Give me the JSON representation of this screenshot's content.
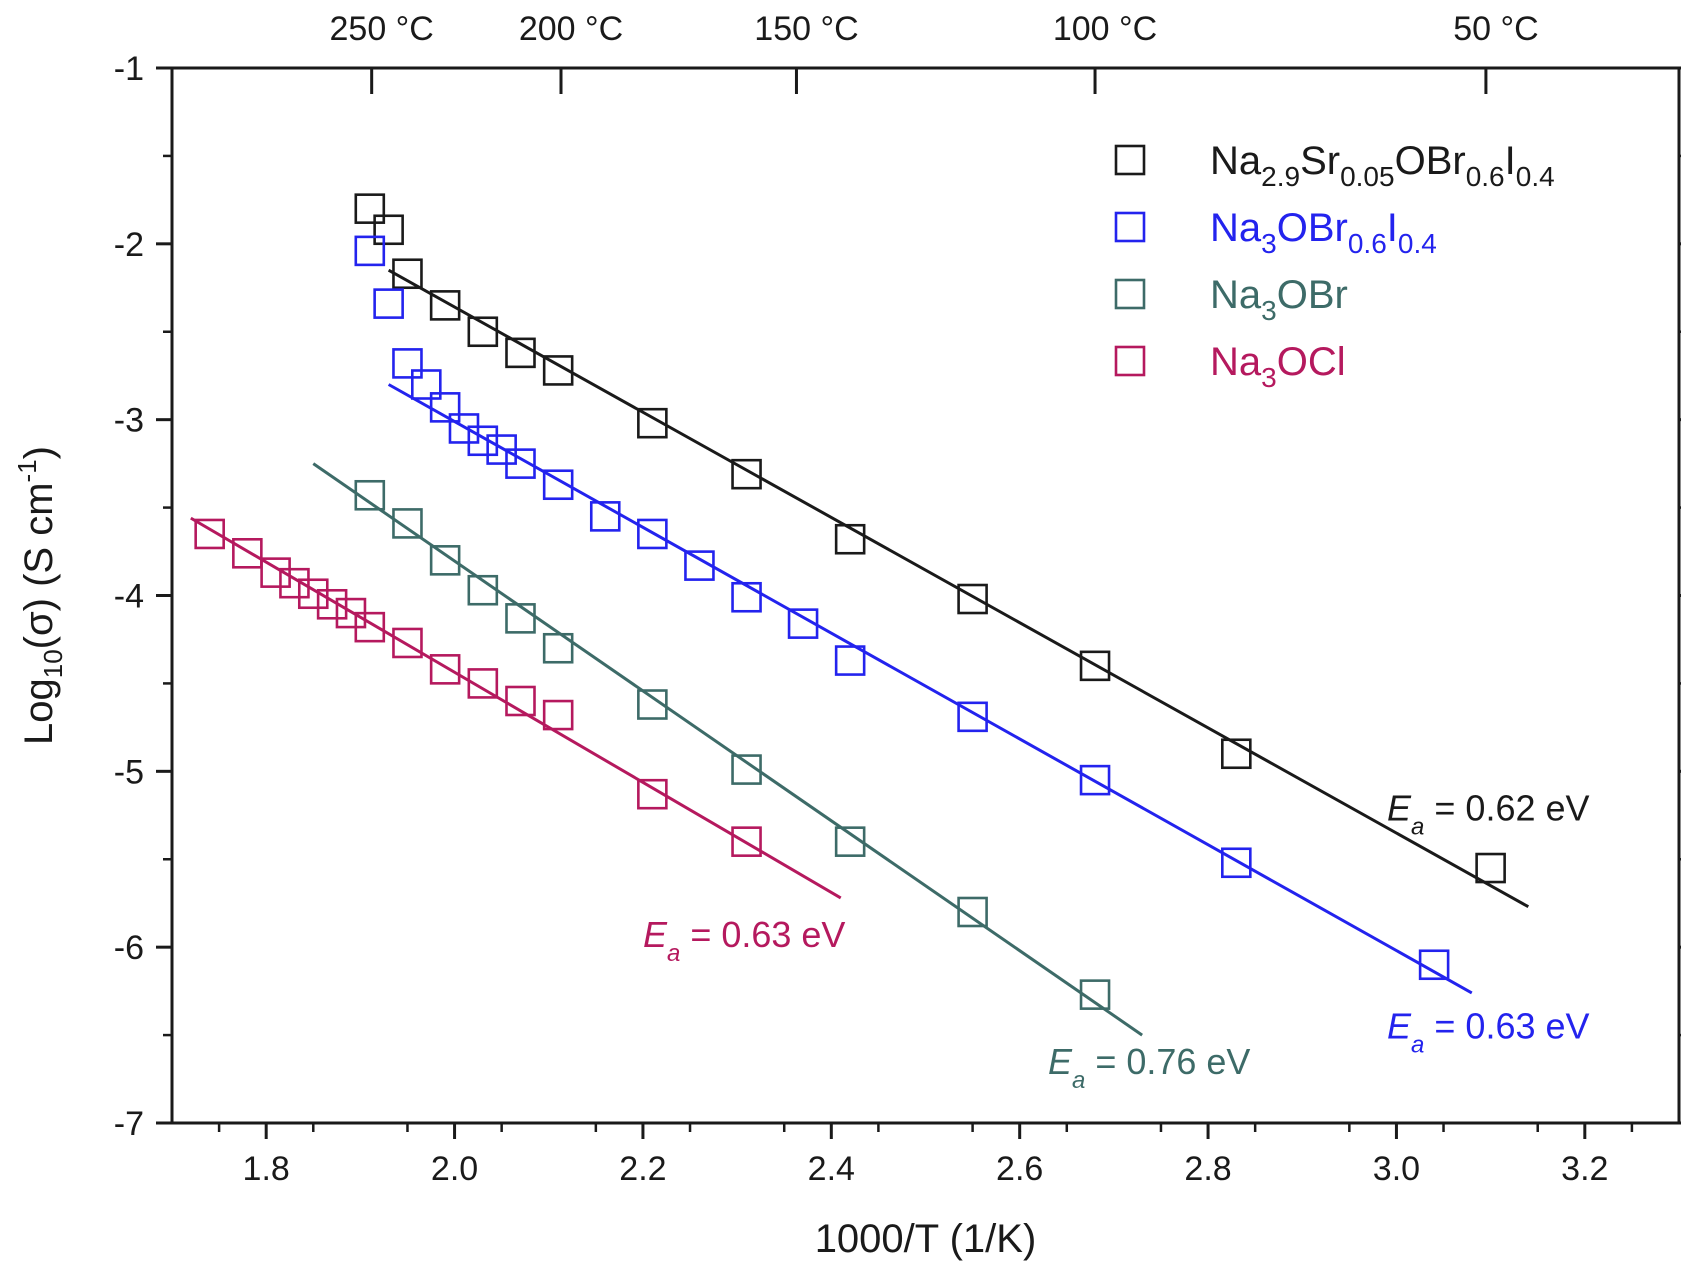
{
  "chart_data": {
    "type": "scatter",
    "title": "",
    "xlabel": "1000/T (1/K)",
    "ylabel": {
      "base": "Log",
      "base_sub": "10",
      "mid": "(σ) (S cm",
      "exp": "-1",
      "end": ")"
    },
    "xlim": [
      1.7,
      3.3
    ],
    "ylim": [
      -7,
      -1
    ],
    "x_ticks": [
      "1.8",
      "2.0",
      "2.2",
      "2.4",
      "2.6",
      "2.8",
      "3.0",
      "3.2"
    ],
    "y_ticks": [
      "-1",
      "-2",
      "-3",
      "-4",
      "-5",
      "-6",
      "-7"
    ],
    "top_axis": {
      "unit": "°C",
      "ticks": [
        {
          "label": "250",
          "x": 1.912
        },
        {
          "label": "200",
          "x": 2.113
        },
        {
          "label": "150",
          "x": 2.363
        },
        {
          "label": "100",
          "x": 2.68
        },
        {
          "label": "50",
          "x": 3.095
        }
      ]
    },
    "legend_position": "top-right",
    "marker": "open-square",
    "series": [
      {
        "color": "#1a1a1a",
        "legend": [
          [
            "Na",
            ""
          ],
          [
            "2.9",
            "sub"
          ],
          [
            "Sr",
            ""
          ],
          [
            "0.05",
            "sub"
          ],
          [
            "OBr",
            ""
          ],
          [
            "0.6",
            "sub"
          ],
          [
            "I",
            ""
          ],
          [
            "0.4",
            "sub"
          ]
        ],
        "points": [
          [
            1.91,
            -1.8
          ],
          [
            1.93,
            -1.92
          ],
          [
            1.95,
            -2.17
          ],
          [
            1.99,
            -2.35
          ],
          [
            2.03,
            -2.5
          ],
          [
            2.07,
            -2.62
          ],
          [
            2.11,
            -2.72
          ],
          [
            2.21,
            -3.02
          ],
          [
            2.31,
            -3.31
          ],
          [
            2.42,
            -3.68
          ],
          [
            2.55,
            -4.02
          ],
          [
            2.68,
            -4.4
          ],
          [
            2.83,
            -4.9
          ],
          [
            3.1,
            -5.55
          ]
        ],
        "fit": [
          [
            1.93,
            -2.15
          ],
          [
            3.14,
            -5.77
          ]
        ],
        "annotation": {
          "E": "E",
          "sub": "a",
          "text": " = 0.62 eV",
          "x": 2.99,
          "y": -5.28
        }
      },
      {
        "color": "#2323ee",
        "legend": [
          [
            "Na",
            ""
          ],
          [
            "3",
            "sub"
          ],
          [
            "OBr",
            ""
          ],
          [
            "0.6",
            "sub"
          ],
          [
            "I",
            ""
          ],
          [
            "0.4",
            "sub"
          ]
        ],
        "points": [
          [
            1.91,
            -2.04
          ],
          [
            1.93,
            -2.34
          ],
          [
            1.95,
            -2.68
          ],
          [
            1.97,
            -2.8
          ],
          [
            1.99,
            -2.93
          ],
          [
            2.01,
            -3.05
          ],
          [
            2.03,
            -3.12
          ],
          [
            2.05,
            -3.17
          ],
          [
            2.07,
            -3.25
          ],
          [
            2.11,
            -3.37
          ],
          [
            2.16,
            -3.55
          ],
          [
            2.21,
            -3.65
          ],
          [
            2.26,
            -3.83
          ],
          [
            2.31,
            -4.01
          ],
          [
            2.37,
            -4.16
          ],
          [
            2.42,
            -4.37
          ],
          [
            2.55,
            -4.69
          ],
          [
            2.68,
            -5.05
          ],
          [
            2.83,
            -5.52
          ],
          [
            3.04,
            -6.1
          ]
        ],
        "fit": [
          [
            1.93,
            -2.8
          ],
          [
            3.08,
            -6.26
          ]
        ],
        "annotation": {
          "E": "E",
          "sub": "a",
          "text": " = 0.63 eV",
          "x": 2.99,
          "y": -6.52
        }
      },
      {
        "color": "#3d6b68",
        "legend": [
          [
            "Na",
            ""
          ],
          [
            "3",
            "sub"
          ],
          [
            "OBr",
            ""
          ]
        ],
        "points": [
          [
            1.91,
            -3.43
          ],
          [
            1.95,
            -3.59
          ],
          [
            1.99,
            -3.8
          ],
          [
            2.03,
            -3.97
          ],
          [
            2.07,
            -4.13
          ],
          [
            2.11,
            -4.3
          ],
          [
            2.21,
            -4.62
          ],
          [
            2.31,
            -4.99
          ],
          [
            2.42,
            -5.4
          ],
          [
            2.55,
            -5.8
          ],
          [
            2.68,
            -6.27
          ]
        ],
        "fit": [
          [
            1.85,
            -3.25
          ],
          [
            2.73,
            -6.5
          ]
        ],
        "annotation": {
          "E": "E",
          "sub": "a",
          "text": " = 0.76 eV",
          "x": 2.63,
          "y": -6.72
        }
      },
      {
        "color": "#b5195e",
        "legend": [
          [
            "Na",
            ""
          ],
          [
            "3",
            "sub"
          ],
          [
            "OCl",
            ""
          ]
        ],
        "points": [
          [
            1.74,
            -3.65
          ],
          [
            1.78,
            -3.76
          ],
          [
            1.81,
            -3.87
          ],
          [
            1.83,
            -3.93
          ],
          [
            1.85,
            -3.99
          ],
          [
            1.87,
            -4.05
          ],
          [
            1.89,
            -4.1
          ],
          [
            1.91,
            -4.18
          ],
          [
            1.95,
            -4.27
          ],
          [
            1.99,
            -4.42
          ],
          [
            2.03,
            -4.5
          ],
          [
            2.07,
            -4.6
          ],
          [
            2.11,
            -4.68
          ],
          [
            2.21,
            -5.13
          ],
          [
            2.31,
            -5.4
          ]
        ],
        "fit": [
          [
            1.72,
            -3.56
          ],
          [
            2.41,
            -5.72
          ]
        ],
        "annotation": {
          "E": "E",
          "sub": "a",
          "text": " = 0.63 eV",
          "x": 2.2,
          "y": -6.0
        }
      }
    ]
  }
}
